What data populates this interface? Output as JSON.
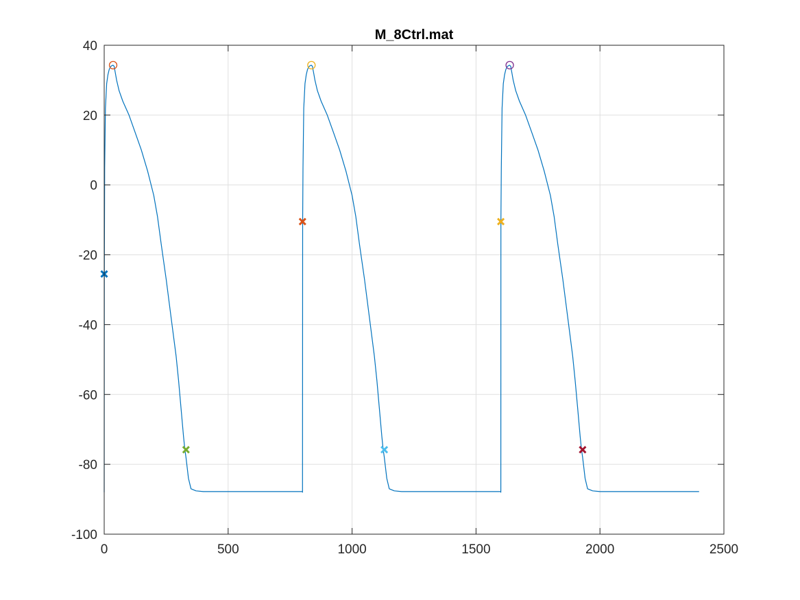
{
  "chart_data": {
    "type": "line",
    "title": "M_8Ctrl.mat",
    "xlabel": "",
    "ylabel": "",
    "xlim": [
      0,
      2500
    ],
    "ylim": [
      -100,
      40
    ],
    "xticks": [
      0,
      500,
      1000,
      1500,
      2000,
      2500
    ],
    "yticks": [
      -100,
      -80,
      -60,
      -40,
      -20,
      0,
      20,
      40
    ],
    "xtick_labels": [
      "0",
      "500",
      "1000",
      "1500",
      "2000",
      "2500"
    ],
    "ytick_labels": [
      "-100",
      "-80",
      "-60",
      "-40",
      "-20",
      "0",
      "20",
      "40"
    ],
    "grid": true,
    "legend": "none",
    "series": [
      {
        "color": "#0072BD",
        "x": [
          0,
          0.5,
          2,
          5,
          10,
          15,
          20,
          25,
          30,
          35,
          40,
          45,
          50,
          60,
          75,
          100,
          125,
          150,
          175,
          200,
          215,
          230,
          250,
          270,
          290,
          300,
          310,
          315,
          320,
          325,
          330,
          335,
          340,
          350,
          370,
          400,
          500,
          600,
          700,
          799.5,
          800,
          800.5,
          802,
          805,
          810,
          815,
          820,
          825,
          830,
          835,
          840,
          845,
          850,
          860,
          875,
          900,
          925,
          950,
          975,
          1000,
          1015,
          1030,
          1050,
          1070,
          1090,
          1100,
          1110,
          1115,
          1120,
          1125,
          1130,
          1135,
          1140,
          1150,
          1170,
          1200,
          1300,
          1400,
          1500,
          1599.5,
          1600,
          1600.5,
          1602,
          1605,
          1610,
          1615,
          1620,
          1625,
          1630,
          1635,
          1640,
          1645,
          1650,
          1660,
          1675,
          1700,
          1725,
          1750,
          1775,
          1800,
          1815,
          1830,
          1850,
          1870,
          1890,
          1900,
          1910,
          1915,
          1920,
          1925,
          1930,
          1935,
          1940,
          1950,
          1970,
          2000,
          2100,
          2200,
          2300,
          2400
        ],
        "y": [
          -88,
          -25.5,
          5,
          22,
          29,
          31.5,
          33,
          33.8,
          34.1,
          34.3,
          34,
          32,
          30,
          27,
          24,
          20,
          15,
          10,
          4,
          -3,
          -9,
          -17,
          -27,
          -38,
          -49,
          -56,
          -64,
          -68,
          -72,
          -75.5,
          -78,
          -81,
          -84,
          -87,
          -87.6,
          -87.8,
          -87.8,
          -87.8,
          -87.8,
          -87.8,
          -88,
          -10.5,
          5,
          22,
          29,
          31.5,
          33,
          33.8,
          34.1,
          34.3,
          34,
          32,
          30,
          27,
          24,
          20,
          15,
          10,
          4,
          -3,
          -9,
          -17,
          -27,
          -38,
          -49,
          -56,
          -64,
          -68,
          -72,
          -75.5,
          -78,
          -81,
          -84,
          -87,
          -87.6,
          -87.8,
          -87.8,
          -87.8,
          -87.8,
          -87.8,
          -88,
          -10.5,
          5,
          22,
          29,
          31.5,
          33,
          33.8,
          34.1,
          34.3,
          34,
          32,
          30,
          27,
          24,
          20,
          15,
          10,
          4,
          -3,
          -9,
          -17,
          -27,
          -38,
          -49,
          -56,
          -64,
          -68,
          -72,
          -75.5,
          -78,
          -81,
          -84,
          -87,
          -87.6,
          -87.8,
          -87.8,
          -87.8,
          -87.8,
          -87.8
        ]
      }
    ],
    "peak_markers": [
      {
        "x": 36,
        "y": 34.3,
        "shape": "circle",
        "color": "#D95319"
      },
      {
        "x": 836,
        "y": 34.3,
        "shape": "circle",
        "color": "#EDB120"
      },
      {
        "x": 1636,
        "y": 34.3,
        "shape": "circle",
        "color": "#7E2F8E"
      }
    ],
    "cross_markers": [
      {
        "x": 0,
        "y": -25.5,
        "shape": "x",
        "color": "#0072BD"
      },
      {
        "x": 800,
        "y": -10.5,
        "shape": "x",
        "color": "#D95319"
      },
      {
        "x": 1600,
        "y": -10.5,
        "shape": "x",
        "color": "#EDB120"
      },
      {
        "x": 330,
        "y": -75.8,
        "shape": "x",
        "color": "#77AC30"
      },
      {
        "x": 1130,
        "y": -75.8,
        "shape": "x",
        "color": "#4DBEEE"
      },
      {
        "x": 1930,
        "y": -75.8,
        "shape": "x",
        "color": "#A2142F"
      }
    ],
    "colors": {
      "axis": "#262626",
      "grid": "#dfdfdf",
      "background": "#ffffff"
    }
  }
}
